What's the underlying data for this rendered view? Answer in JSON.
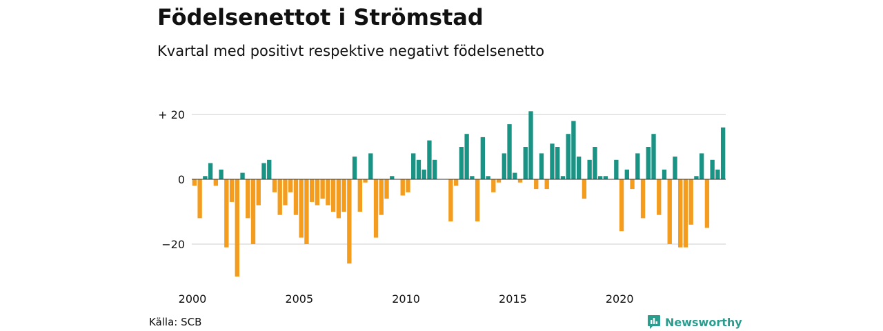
{
  "title": "Födelsenettot i Strömstad",
  "subtitle": "Kvartal med positivt respektive negativt födelsenetto",
  "source": "Källa: SCB",
  "brand": "Newsworthy",
  "colors": {
    "positive": "#1a9384",
    "negative": "#f39c1d",
    "grid": "#dddddd",
    "brand": "#2a9d8f"
  },
  "chart_data": {
    "type": "bar",
    "y_tick_labels": [
      "+ 20",
      "0",
      "−20"
    ],
    "y_tick_values": [
      20,
      0,
      -20
    ],
    "ylim": [
      -31,
      22
    ],
    "x_tick_labels": [
      "2000",
      "2005",
      "2010",
      "2015",
      "2020"
    ],
    "x_tick_years": [
      2000,
      2005,
      2010,
      2015,
      2020
    ],
    "start": "2000-Q1",
    "values": [
      -2,
      -12,
      1,
      5,
      -2,
      3,
      -21,
      -7,
      -30,
      2,
      -12,
      -20,
      -8,
      5,
      6,
      -4,
      -11,
      -8,
      -4,
      -11,
      -18,
      -20,
      -7,
      -8,
      -6,
      -8,
      -10,
      -12,
      -10,
      -26,
      7,
      -10,
      -1,
      8,
      -18,
      -11,
      -6,
      1,
      0,
      -5,
      -4,
      8,
      6,
      3,
      12,
      6,
      0,
      0,
      -13,
      -2,
      10,
      14,
      1,
      -13,
      13,
      1,
      -4,
      -1,
      8,
      17,
      2,
      -1,
      10,
      21,
      -3,
      8,
      -3,
      11,
      10,
      1,
      14,
      18,
      7,
      -6,
      6,
      10,
      1,
      1,
      0,
      6,
      -16,
      3,
      -3,
      8,
      -12,
      10,
      14,
      -11,
      3,
      -20,
      7,
      -21,
      -21,
      -14,
      1,
      8,
      -15,
      6,
      3,
      16
    ]
  }
}
